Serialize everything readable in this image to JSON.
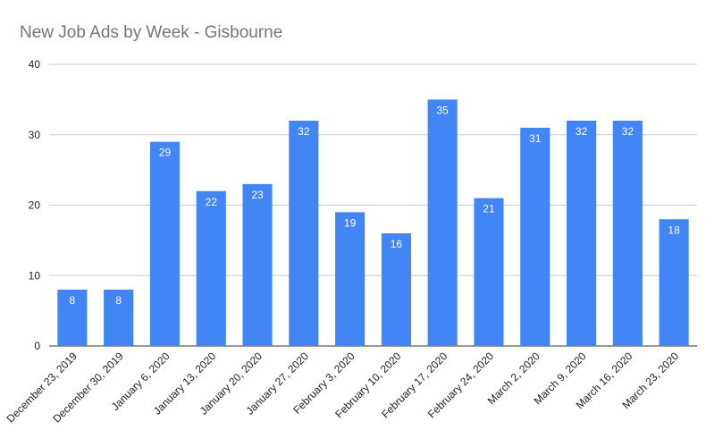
{
  "chart_data": {
    "type": "bar",
    "title": "New Job Ads by Week - Gisbourne",
    "xlabel": "",
    "ylabel": "",
    "categories": [
      "December 23, 2019",
      "December 30, 2019",
      "January 6, 2020",
      "January 13, 2020",
      "January 20, 2020",
      "January 27, 2020",
      "February 3, 2020",
      "February 10, 2020",
      "February 17, 2020",
      "February 24, 2020",
      "March 2, 2020",
      "March 9, 2020",
      "March 16, 2020",
      "March 23, 2020"
    ],
    "values": [
      8,
      8,
      29,
      22,
      23,
      32,
      19,
      16,
      35,
      21,
      31,
      32,
      32,
      18
    ],
    "ylim": [
      0,
      40
    ],
    "yticks": [
      0,
      10,
      20,
      30,
      40
    ],
    "grid": true,
    "legend": "none",
    "bar_color": "#4285f4",
    "data_label_color": "#ffffff"
  }
}
